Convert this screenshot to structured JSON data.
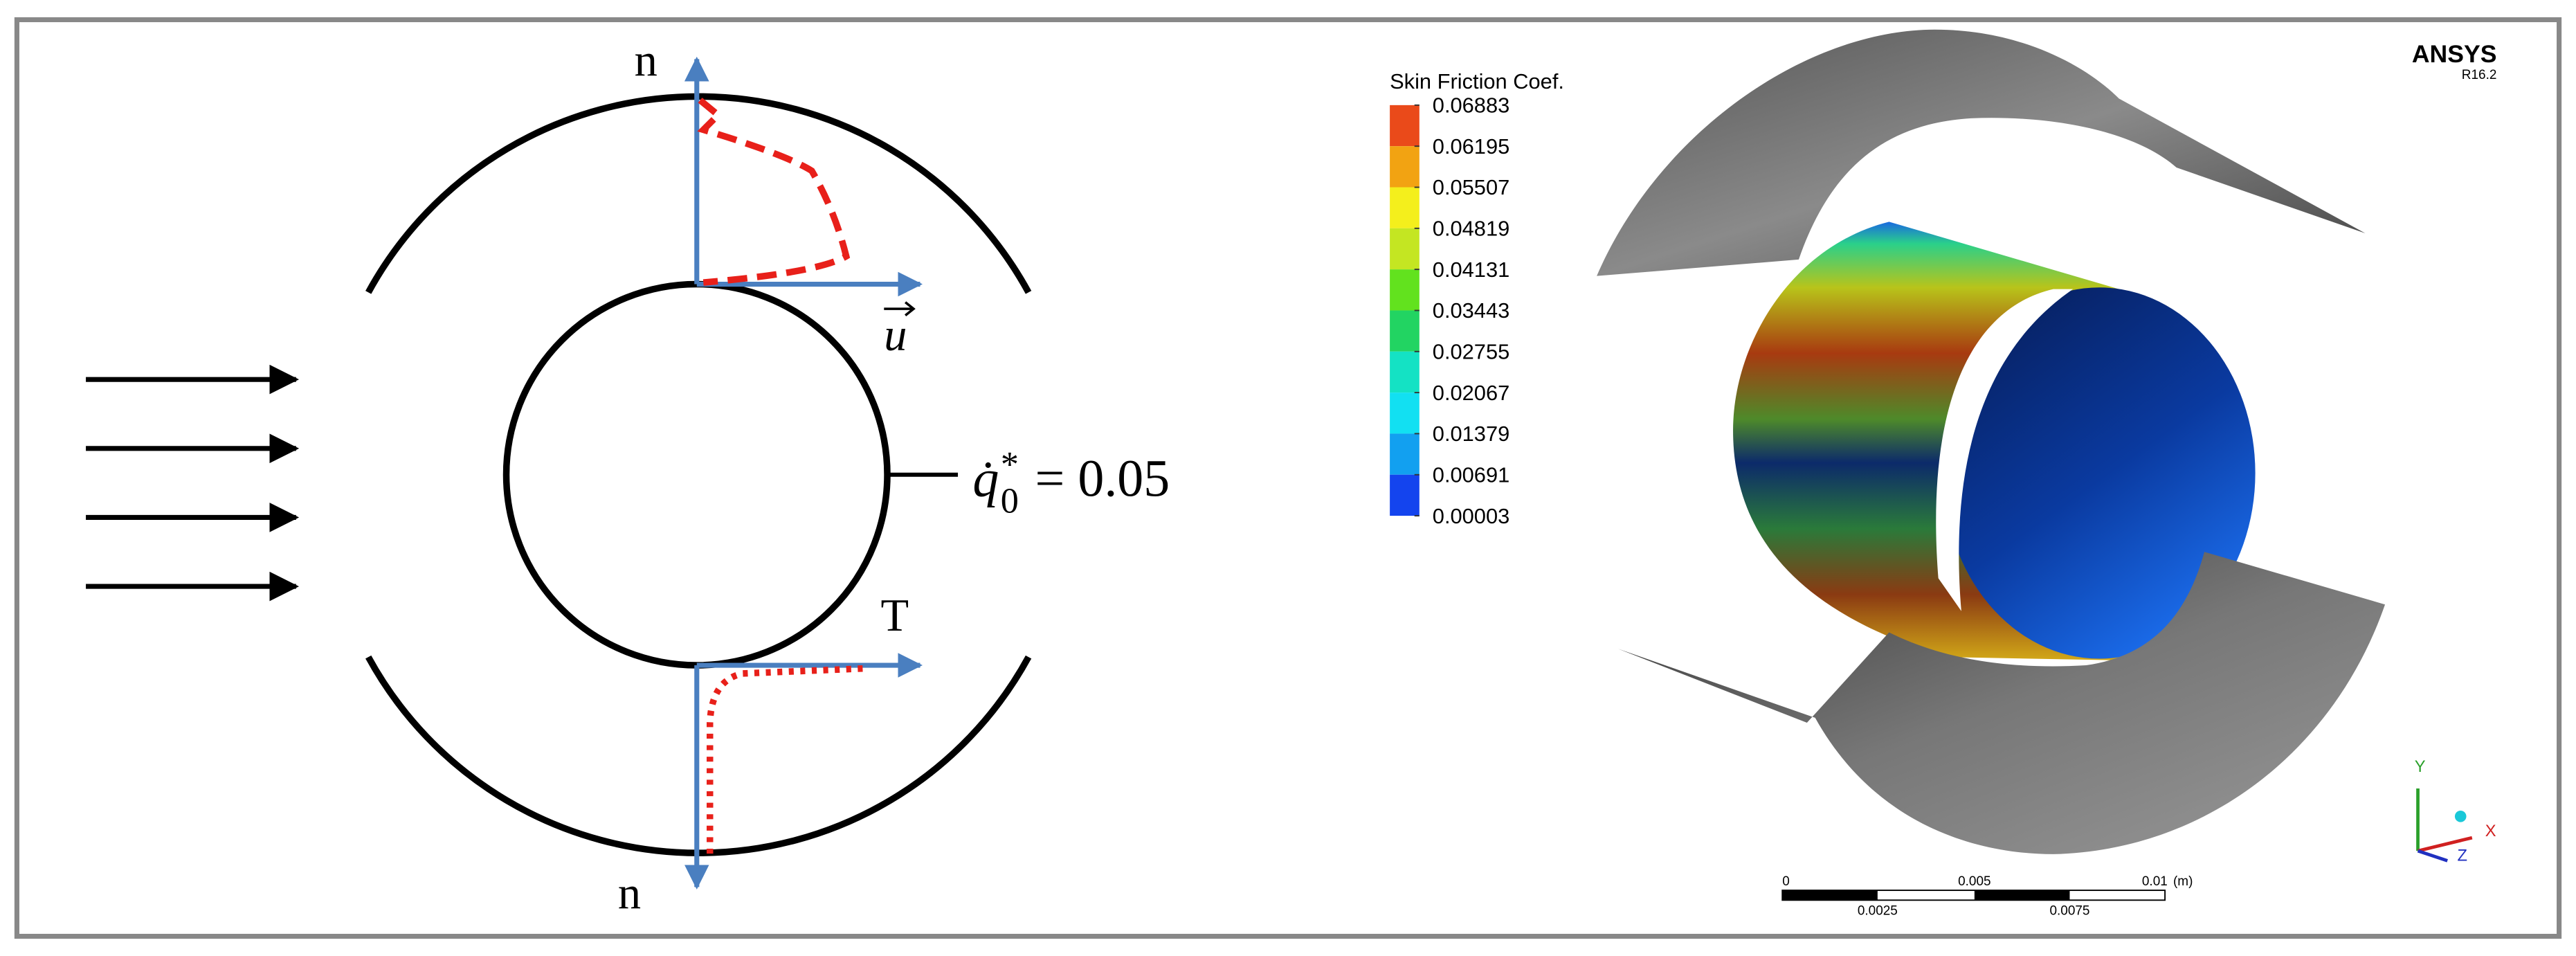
{
  "diagram": {
    "labels": {
      "normal_top": "n",
      "velocity": "u",
      "tangent": "T",
      "normal_bottom": "n"
    },
    "heat_flux": {
      "symbol": "q̇",
      "superscript": "*",
      "subscript": "0",
      "rhs": "= 0.05"
    }
  },
  "contour": {
    "legend": {
      "title": "Skin Friction Coef.",
      "levels": [
        "0.06883",
        "0.06195",
        "0.05507",
        "0.04819",
        "0.04131",
        "0.03443",
        "0.02755",
        "0.02067",
        "0.01379",
        "0.00691",
        "0.00003"
      ],
      "colors": [
        "#ea4a1a",
        "#f2a312",
        "#f4ef1c",
        "#c4e622",
        "#62e21e",
        "#22d462",
        "#14e2c4",
        "#12e0f2",
        "#12a0f0",
        "#1444ee"
      ]
    },
    "brand": "ANSYS",
    "version": "R16.2",
    "scale_bar": {
      "top_labels": [
        "0",
        "0.005",
        "0.01"
      ],
      "unit": "(m)",
      "bottom_labels": [
        "0.0025",
        "0.0075"
      ]
    },
    "axes": {
      "y": "Y",
      "x": "X",
      "z": "Z"
    }
  }
}
